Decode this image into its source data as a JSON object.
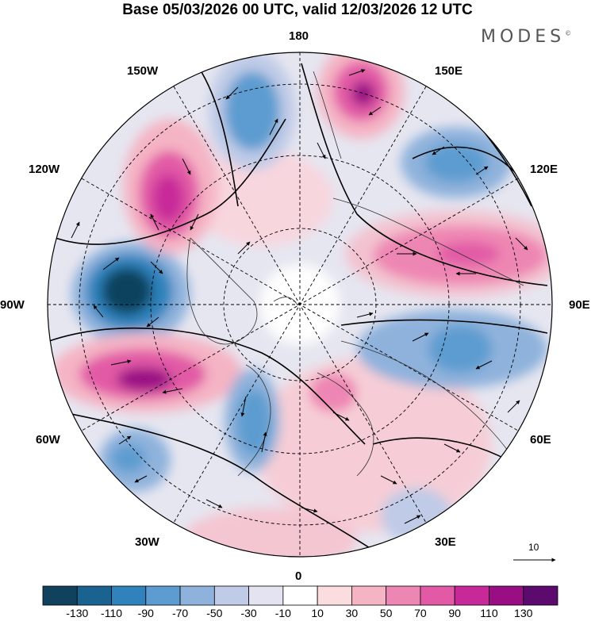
{
  "title": "Base 05/03/2026 00 UTC, valid 12/03/2026 12 UTC",
  "logo": {
    "text": "MODES",
    "mark": "©"
  },
  "longitude_labels": {
    "n180": "180",
    "e150": "150E",
    "e120": "120E",
    "e90": "90E",
    "e60": "60E",
    "e30": "30E",
    "z0": "0",
    "w30": "30W",
    "w60": "60W",
    "w90": "90W",
    "w120": "120W",
    "w150": "150W"
  },
  "reference_vector": {
    "label": "10",
    "icon": "arrow-right-icon"
  },
  "colorbar": {
    "colors": [
      "#10425e",
      "#1a6391",
      "#2f82bc",
      "#5d9cd0",
      "#8fb2dc",
      "#bfcbe7",
      "#e3e3f1",
      "#ffffff",
      "#fbdcdf",
      "#f5b4c4",
      "#ee86b3",
      "#e25aa6",
      "#c82999",
      "#9a0e84",
      "#5c0a6e"
    ],
    "labels": [
      "-130",
      "-110",
      "-90",
      "-70",
      "-50",
      "-30",
      "-10",
      "10",
      "30",
      "50",
      "70",
      "90",
      "110",
      "130"
    ]
  },
  "map_data": {
    "type": "polar-stereographic anomaly map",
    "anomalies": [
      {
        "sign": "neg",
        "max": -130,
        "lon": "90W"
      },
      {
        "sign": "pos",
        "max": 110,
        "lon": "120W"
      },
      {
        "sign": "pos",
        "max": 110,
        "lon": "70W"
      },
      {
        "sign": "neg",
        "max": -70,
        "lon": "165W"
      },
      {
        "sign": "pos",
        "max": 110,
        "lon": "165E"
      },
      {
        "sign": "neg",
        "max": -70,
        "lon": "130E"
      },
      {
        "sign": "pos",
        "max": 90,
        "lon": "100E"
      },
      {
        "sign": "neg",
        "max": -70,
        "lon": "75E"
      },
      {
        "sign": "neg",
        "max": -70,
        "lon": "45W"
      },
      {
        "sign": "neg",
        "max": -50,
        "lon": "25W"
      }
    ]
  }
}
